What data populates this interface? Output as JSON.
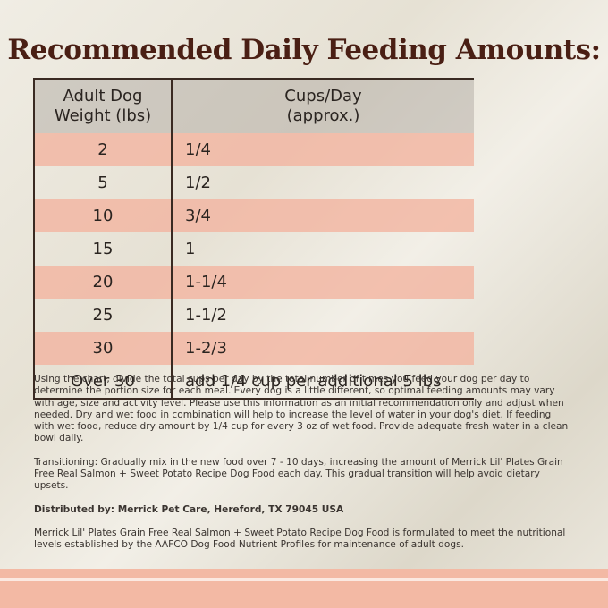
{
  "title": "Recommended Daily Feeding Amounts:",
  "table": {
    "headers": [
      "Adult Dog\nWeight (lbs)",
      "Cups/Day\n(approx.)"
    ],
    "rows": [
      [
        "2",
        "1/4"
      ],
      [
        "5",
        "1/2"
      ],
      [
        "10",
        "3/4"
      ],
      [
        "15",
        "1"
      ],
      [
        "20",
        "1-1/4"
      ],
      [
        "25",
        "1-1/2"
      ],
      [
        "30",
        "1-2/3"
      ],
      [
        "Over 30",
        "add 1/4 cup per additional 5 lbs"
      ]
    ]
  },
  "paragraphs": [
    "Using the chart, divide the total cups per day by the total number of times you feed your dog per day to determine the portion size for each meal. Every dog is a little different, so optimal feeding amounts may vary with age, size and activity level. Please use this information as an initial recommendation only and adjust when needed. Dry and wet food in combination will help to increase the level of water in your dog's diet. If feeding with wet food, reduce dry amount by 1/4 cup for every 3 oz of wet food. Provide adequate fresh water in a clean bowl daily.",
    "Transitioning: Gradually mix in the new food over 7 - 10 days, increasing the amount of Merrick Lil' Plates Grain Free Real Salmon + Sweet Potato Recipe Dog Food each day. This gradual transition will help avoid dietary upsets."
  ],
  "distributor": "Distributed by: Merrick Pet Care, Hereford, TX 79045 USA",
  "aafco": "Merrick Lil' Plates Grain Free Real Salmon + Sweet Potato Recipe Dog Food is formulated to meet the nutritional levels established by the AAFCO Dog Food Nutrient Profiles for maintenance of adult dogs."
}
